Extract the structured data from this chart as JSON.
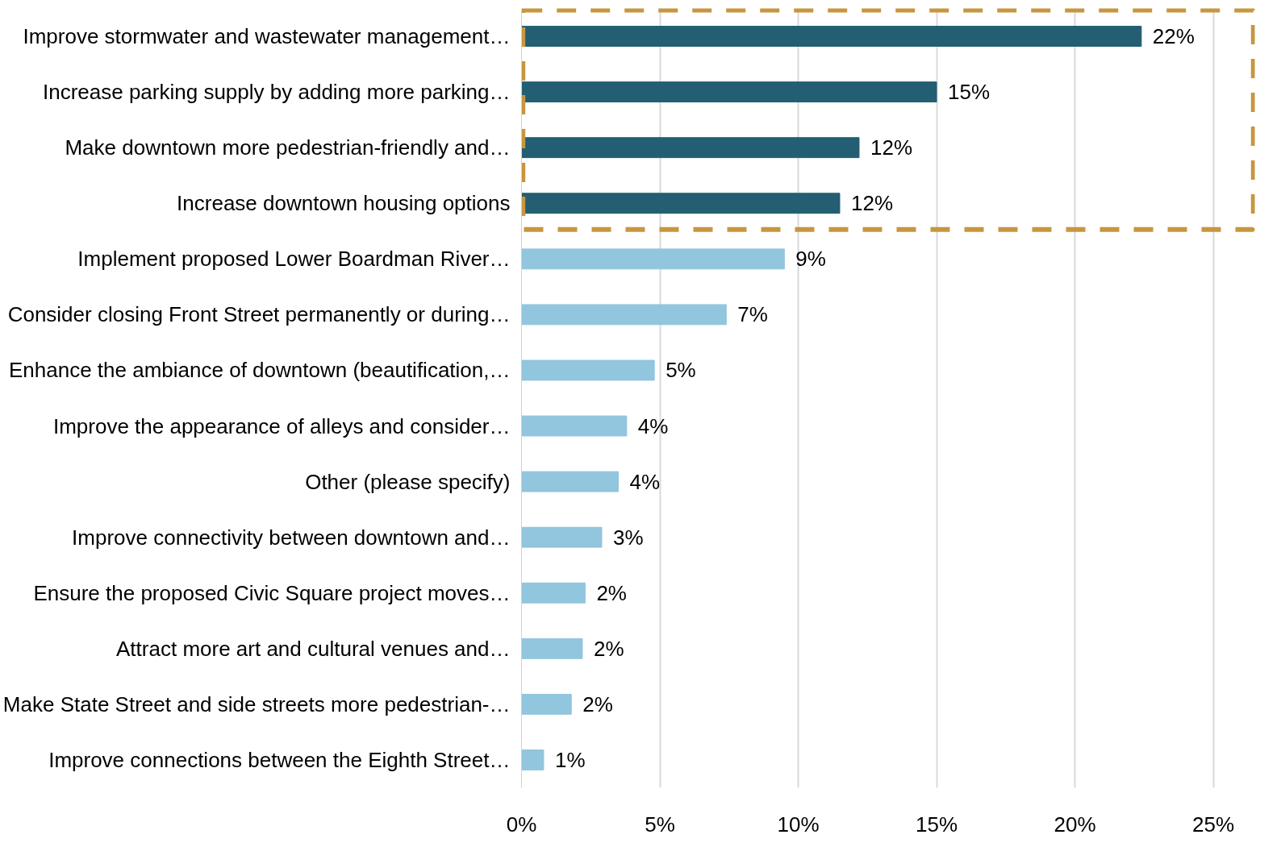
{
  "chart_data": {
    "type": "bar",
    "orientation": "horizontal",
    "categories": [
      "Improve stormwater and wastewater management…",
      "Increase parking supply by adding more parking…",
      "Make downtown more pedestrian-friendly and…",
      "Increase downtown housing options",
      "Implement proposed Lower Boardman River…",
      "Consider closing Front Street permanently or during…",
      "Enhance the ambiance of downtown (beautification,…",
      "Improve the appearance of alleys and consider…",
      "Other (please specify)",
      "Improve connectivity between downtown and…",
      "Ensure the proposed Civic Square project moves…",
      "Attract more art and cultural venues and…",
      "Make State Street and side streets more pedestrian-…",
      "Improve connections between the Eighth Street…"
    ],
    "values": [
      22.4,
      15.0,
      12.2,
      11.5,
      9.5,
      7.4,
      4.8,
      3.8,
      3.5,
      2.9,
      2.3,
      2.2,
      1.8,
      0.8
    ],
    "value_labels": [
      "22%",
      "15%",
      "12%",
      "12%",
      "9%",
      "7%",
      "5%",
      "4%",
      "4%",
      "3%",
      "2%",
      "2%",
      "2%",
      "1%"
    ],
    "colors": [
      "#235e72",
      "#235e72",
      "#235e72",
      "#235e72",
      "#92c5de",
      "#92c5de",
      "#92c5de",
      "#92c5de",
      "#92c5de",
      "#92c5de",
      "#92c5de",
      "#92c5de",
      "#92c5de",
      "#92c5de"
    ],
    "xlim": [
      0,
      26.5
    ],
    "xticks": [
      {
        "value": 0,
        "label": "0%"
      },
      {
        "value": 5,
        "label": "5%"
      },
      {
        "value": 10,
        "label": "10%"
      },
      {
        "value": 15,
        "label": "15%"
      },
      {
        "value": 20,
        "label": "20%"
      },
      {
        "value": 25,
        "label": "25%"
      }
    ],
    "grid": "x"
  }
}
